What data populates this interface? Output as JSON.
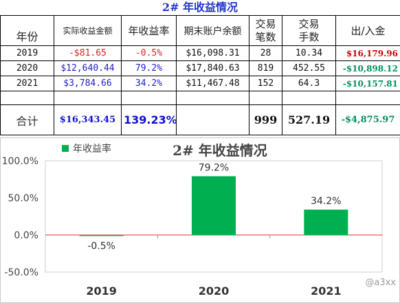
{
  "table": {
    "title": "2# 年收益情况",
    "headers": {
      "year": "年份",
      "profit": "实际收益金额",
      "rate": "年收益率",
      "balance": "期末账户余额",
      "trades_l1": "交易",
      "trades_l2": "笔数",
      "lots_l1": "交易",
      "lots_l2": "手数",
      "inout": "出/入金"
    },
    "rows": [
      {
        "year": "2019",
        "profit": "-$81.65",
        "rate": "-0.5%",
        "balance": "$16,098.31",
        "trades": "28",
        "lots": "10.34",
        "inout": "$16,179.96"
      },
      {
        "year": "2020",
        "profit": "$12,640.44",
        "rate": "79.2%",
        "balance": "$17,840.63",
        "trades": "819",
        "lots": "452.55",
        "inout": "-$10,898.12"
      },
      {
        "year": "2021",
        "profit": "$3,784.66",
        "rate": "34.2%",
        "balance": "$11,467.48",
        "trades": "152",
        "lots": "64.3",
        "inout": "-$10,157.81"
      }
    ],
    "total": {
      "label": "合计",
      "profit": "$16,343.45",
      "rate": "139.23%",
      "balance": "",
      "trades": "999",
      "lots": "527.19",
      "inout": "-$4,875.97"
    }
  },
  "chart_data": {
    "type": "bar",
    "title": "2# 年收益情况",
    "categories": [
      "2019",
      "2020",
      "2021"
    ],
    "series": [
      {
        "name": "年收益率",
        "values": [
          -0.5,
          79.2,
          34.2
        ],
        "color": "#00b050"
      }
    ],
    "data_labels": [
      "-0.5%",
      "79.2%",
      "34.2%"
    ],
    "ylim": [
      -50,
      100
    ],
    "yticks": [
      -50,
      0,
      50,
      100
    ],
    "ytick_labels": [
      "-50.0%",
      "0.0%",
      "50.0%",
      "100.0%"
    ],
    "legend": "top-left",
    "grid": false,
    "zero_line_color": "#e03030"
  },
  "watermark": "@a3xx"
}
